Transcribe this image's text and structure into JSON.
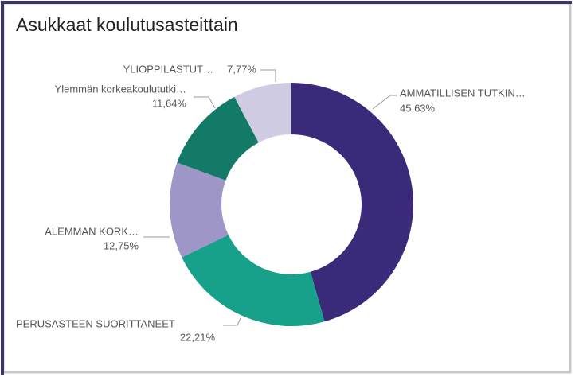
{
  "chart_data": {
    "type": "donut",
    "title": "Asukkaat koulutusasteittain",
    "categories": [
      "AMMATILLISEN TUTKIN…",
      "PERUSASTEEN SUORITTANEET",
      "ALEMMAN KORK…",
      "Ylemmän korkeakoulututki…",
      "YLIOPPILASTUT…"
    ],
    "values": [
      45.63,
      22.21,
      12.75,
      11.64,
      7.77
    ],
    "value_labels": [
      "45,63%",
      "22,21%",
      "12,75%",
      "11,64%",
      "7,77%"
    ],
    "colors": [
      "#3b2a7a",
      "#17a08a",
      "#9d96c6",
      "#127a66",
      "#cfcbe2"
    ]
  }
}
